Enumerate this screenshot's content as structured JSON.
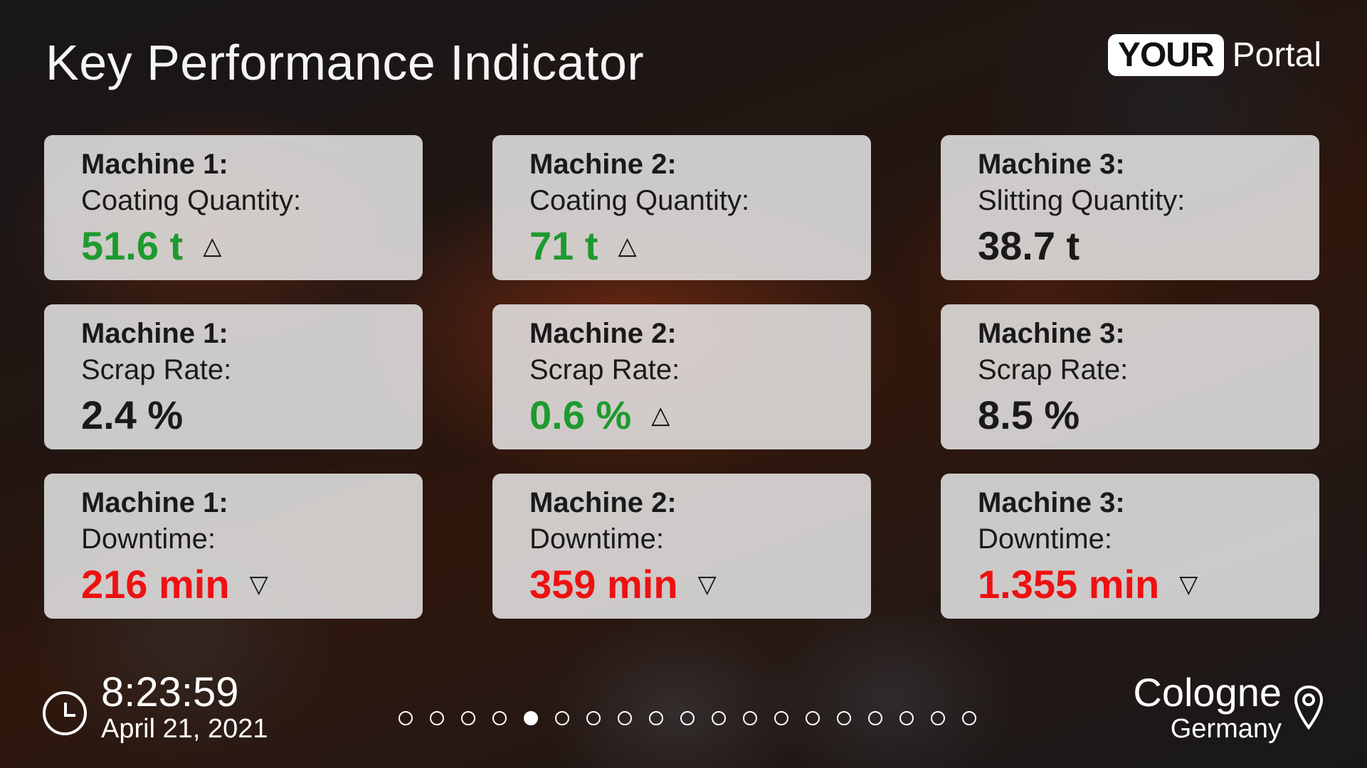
{
  "header": {
    "title": "Key Performance Indicator",
    "logo_box": "YOUR",
    "logo_text": "Portal"
  },
  "cards": [
    {
      "machine": "Machine 1:",
      "metric": "Coating Quantity:",
      "value": "51.6 t",
      "trend": "△",
      "color": "#1e9a2e"
    },
    {
      "machine": "Machine 2:",
      "metric": "Coating Quantity:",
      "value": "71 t",
      "trend": "△",
      "color": "#1e9a2e"
    },
    {
      "machine": "Machine 3:",
      "metric": "Slitting Quantity:",
      "value": "38.7 t",
      "trend": "",
      "color": "#1a1a1a"
    },
    {
      "machine": "Machine 1:",
      "metric": "Scrap Rate:",
      "value": "2.4 %",
      "trend": "",
      "color": "#1a1a1a"
    },
    {
      "machine": "Machine 2:",
      "metric": "Scrap Rate:",
      "value": "0.6 %",
      "trend": "△",
      "color": "#1e9a2e"
    },
    {
      "machine": "Machine 3:",
      "metric": "Scrap Rate:",
      "value": "8.5 %",
      "trend": "",
      "color": "#1a1a1a"
    },
    {
      "machine": "Machine 1:",
      "metric": "Downtime:",
      "value": "216 min",
      "trend": "▽",
      "color": "#ee1111"
    },
    {
      "machine": "Machine 2:",
      "metric": "Downtime:",
      "value": "359 min",
      "trend": "▽",
      "color": "#ee1111"
    },
    {
      "machine": "Machine 3:",
      "metric": "Downtime:",
      "value": "1.355 min",
      "trend": "▽",
      "color": "#ee1111"
    }
  ],
  "footer": {
    "time": "8:23:59",
    "date": "April 21, 2021",
    "clock_icon": "clock-icon",
    "city": "Cologne",
    "country": "Germany",
    "location_icon": "location-pin-icon",
    "page_indicator": {
      "total": 19,
      "active": 5
    }
  }
}
